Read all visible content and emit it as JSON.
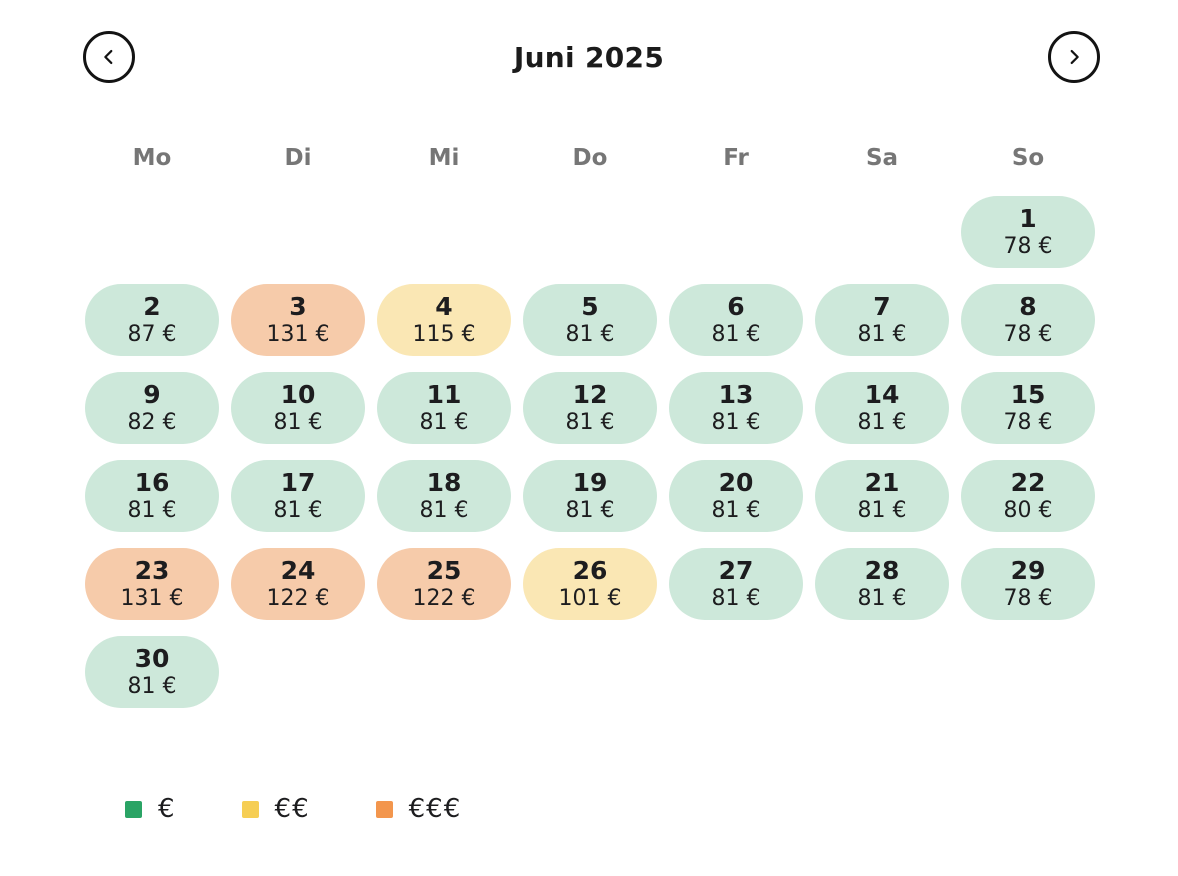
{
  "header": {
    "title": "Juni 2025",
    "prev_icon": "chevron-left",
    "next_icon": "chevron-right"
  },
  "weekdays": [
    "Mo",
    "Di",
    "Mi",
    "Do",
    "Fr",
    "Sa",
    "So"
  ],
  "colors": {
    "background": "#ffffff",
    "title_text": "#1b1b1b",
    "weekday_text": "#767676",
    "day_text": "#1d1d1f",
    "nav_stroke": "#131313",
    "tiers": {
      "low": {
        "pill": "#cde8da",
        "legend": "#2aa465"
      },
      "mid": {
        "pill": "#fae7b4",
        "legend": "#f6ce54"
      },
      "high": {
        "pill": "#f6cbaa",
        "legend": "#f3964d"
      }
    }
  },
  "calendar": {
    "month": "Juni",
    "year": "2025",
    "weeks": [
      [
        null,
        null,
        null,
        null,
        null,
        null,
        {
          "day": "1",
          "price": "78 €",
          "tier": "low"
        }
      ],
      [
        {
          "day": "2",
          "price": "87 €",
          "tier": "low"
        },
        {
          "day": "3",
          "price": "131 €",
          "tier": "high"
        },
        {
          "day": "4",
          "price": "115 €",
          "tier": "mid"
        },
        {
          "day": "5",
          "price": "81 €",
          "tier": "low"
        },
        {
          "day": "6",
          "price": "81 €",
          "tier": "low"
        },
        {
          "day": "7",
          "price": "81 €",
          "tier": "low"
        },
        {
          "day": "8",
          "price": "78 €",
          "tier": "low"
        }
      ],
      [
        {
          "day": "9",
          "price": "82 €",
          "tier": "low"
        },
        {
          "day": "10",
          "price": "81 €",
          "tier": "low"
        },
        {
          "day": "11",
          "price": "81 €",
          "tier": "low"
        },
        {
          "day": "12",
          "price": "81 €",
          "tier": "low"
        },
        {
          "day": "13",
          "price": "81 €",
          "tier": "low"
        },
        {
          "day": "14",
          "price": "81 €",
          "tier": "low"
        },
        {
          "day": "15",
          "price": "78 €",
          "tier": "low"
        }
      ],
      [
        {
          "day": "16",
          "price": "81 €",
          "tier": "low"
        },
        {
          "day": "17",
          "price": "81 €",
          "tier": "low"
        },
        {
          "day": "18",
          "price": "81 €",
          "tier": "low"
        },
        {
          "day": "19",
          "price": "81 €",
          "tier": "low"
        },
        {
          "day": "20",
          "price": "81 €",
          "tier": "low"
        },
        {
          "day": "21",
          "price": "81 €",
          "tier": "low"
        },
        {
          "day": "22",
          "price": "80 €",
          "tier": "low"
        }
      ],
      [
        {
          "day": "23",
          "price": "131 €",
          "tier": "high"
        },
        {
          "day": "24",
          "price": "122 €",
          "tier": "high"
        },
        {
          "day": "25",
          "price": "122 €",
          "tier": "high"
        },
        {
          "day": "26",
          "price": "101 €",
          "tier": "mid"
        },
        {
          "day": "27",
          "price": "81 €",
          "tier": "low"
        },
        {
          "day": "28",
          "price": "81 €",
          "tier": "low"
        },
        {
          "day": "29",
          "price": "78 €",
          "tier": "low"
        }
      ],
      [
        {
          "day": "30",
          "price": "81 €",
          "tier": "low"
        },
        null,
        null,
        null,
        null,
        null,
        null
      ]
    ]
  },
  "legend": [
    {
      "label": "€",
      "tier": "low"
    },
    {
      "label": "€€",
      "tier": "mid"
    },
    {
      "label": "€€€",
      "tier": "high"
    }
  ]
}
